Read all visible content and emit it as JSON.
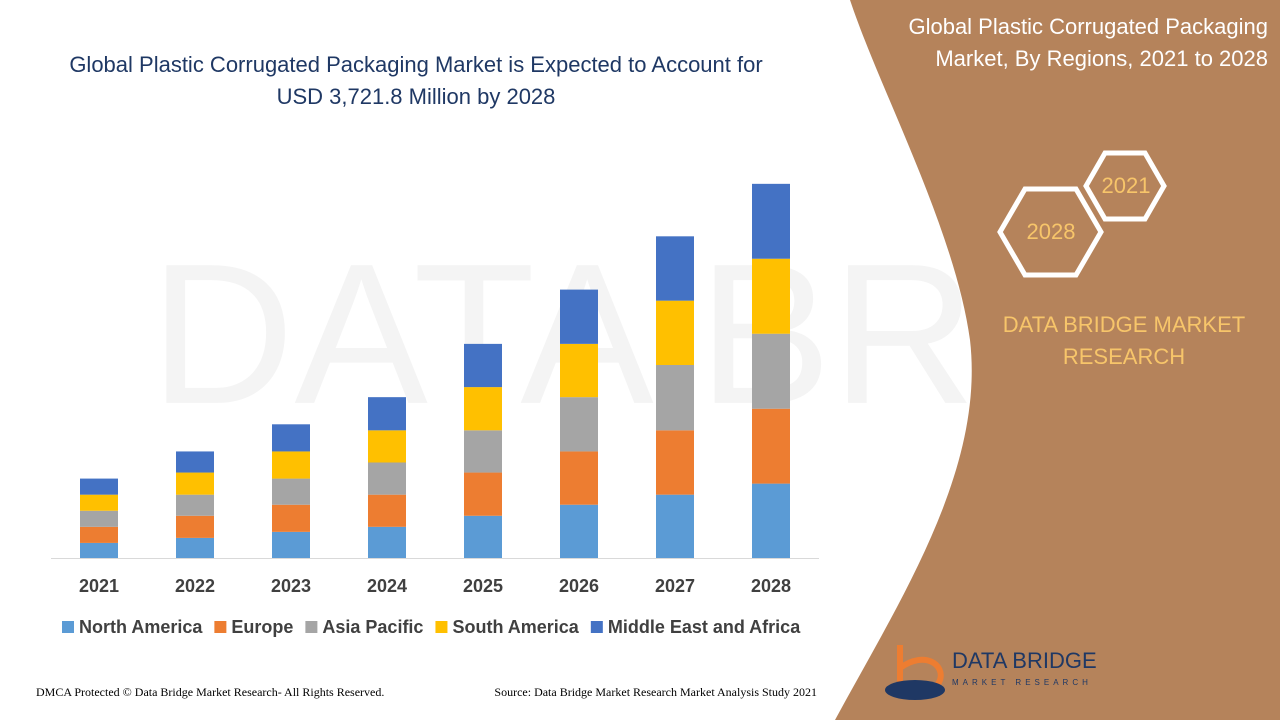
{
  "chart_data": {
    "type": "stacked_bar",
    "title": "Global Plastic Corrugated Packaging Market is Expected to Account for USD 3,721.8 Million by 2028",
    "categories": [
      "2021",
      "2022",
      "2023",
      "2024",
      "2025",
      "2026",
      "2027",
      "2028"
    ],
    "series": [
      {
        "name": "North America",
        "color": "#5b9bd5",
        "values": [
          150,
          200,
          260,
          310,
          420,
          530,
          630,
          740
        ]
      },
      {
        "name": "Europe",
        "color": "#ed7d31",
        "values": [
          160,
          220,
          270,
          320,
          430,
          530,
          640,
          745
        ]
      },
      {
        "name": "Asia Pacific",
        "color": "#a5a5a5",
        "values": [
          160,
          210,
          260,
          320,
          420,
          540,
          650,
          746
        ]
      },
      {
        "name": "South America",
        "color": "#ffc000",
        "values": [
          160,
          220,
          270,
          320,
          430,
          530,
          640,
          746
        ]
      },
      {
        "name": "Middle East and Africa",
        "color": "#4472c4",
        "values": [
          160,
          210,
          270,
          330,
          430,
          540,
          640,
          745
        ]
      }
    ],
    "ylim": [
      0,
      3800
    ],
    "legend": "bottom"
  },
  "side_panel": {
    "title": "Global Plastic Corrugated Packaging Market, By Regions, 2021 to 2028",
    "hexagons": [
      "2021",
      "2028"
    ],
    "brand": "DATA BRIDGE MARKET RESEARCH"
  },
  "logo": {
    "name": "DATA BRIDGE",
    "tagline": "MARKET RESEARCH"
  },
  "footer": {
    "left": "DMCA Protected © Data Bridge Market Research- All Rights Reserved.",
    "right": "Source: Data Bridge Market Research Market Analysis Study 2021"
  }
}
